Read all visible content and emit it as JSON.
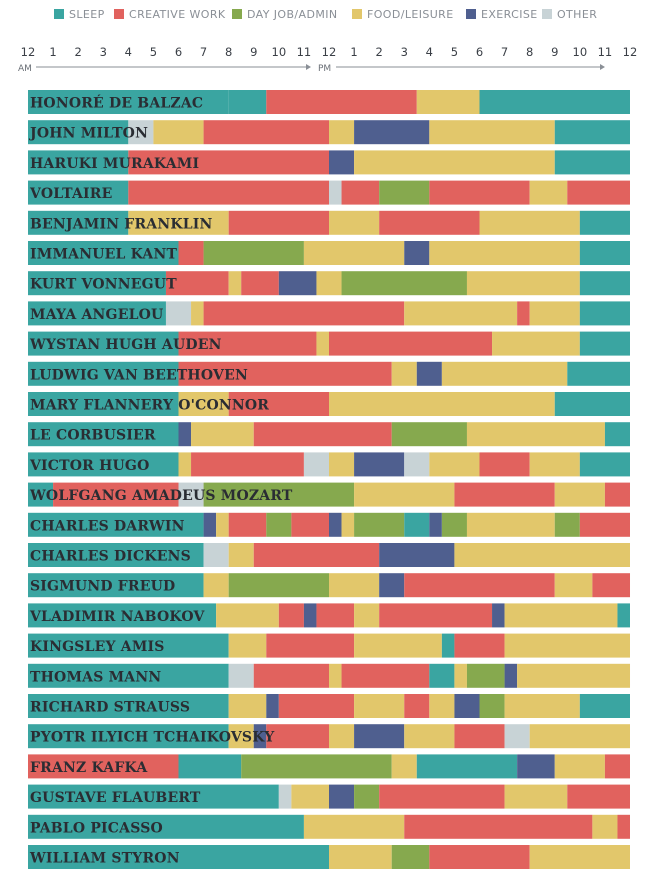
{
  "chart_data": {
    "type": "timeline",
    "x_unit": "hour of day",
    "xlim": [
      0,
      24
    ],
    "legend": [
      {
        "key": "sleep",
        "label": "SLEEP",
        "color": "#3aa5a1"
      },
      {
        "key": "creative",
        "label": "CREATIVE WORK",
        "color": "#e1625e"
      },
      {
        "key": "dayjob",
        "label": "DAY JOB/ADMIN",
        "color": "#86a94e"
      },
      {
        "key": "food",
        "label": "FOOD/LEISURE",
        "color": "#e2c76b"
      },
      {
        "key": "exercise",
        "label": "EXERCISE",
        "color": "#4f5f8f"
      },
      {
        "key": "other",
        "label": "OTHER",
        "color": "#c8d3d6"
      }
    ],
    "ticks": [
      "12",
      "1",
      "2",
      "3",
      "4",
      "5",
      "6",
      "7",
      "8",
      "9",
      "10",
      "11",
      "12",
      "1",
      "2",
      "3",
      "4",
      "5",
      "6",
      "7",
      "8",
      "9",
      "10",
      "11",
      "12"
    ],
    "am_label": "AM",
    "pm_label": "PM",
    "people": [
      {
        "name": "HONORÉ DE BALZAC",
        "segments": [
          [
            "sleep",
            0,
            8
          ],
          [
            "sleep",
            8,
            9.5
          ],
          [
            "creative",
            9.5,
            15.5
          ],
          [
            "food",
            15.5,
            18
          ],
          [
            "sleep",
            18,
            24
          ]
        ]
      },
      {
        "name": "JOHN MILTON",
        "segments": [
          [
            "sleep",
            0,
            4
          ],
          [
            "other",
            4,
            5
          ],
          [
            "food",
            5,
            7
          ],
          [
            "creative",
            7,
            12
          ],
          [
            "food",
            12,
            13
          ],
          [
            "exercise",
            13,
            16
          ],
          [
            "food",
            16,
            21
          ],
          [
            "sleep",
            21,
            24
          ]
        ]
      },
      {
        "name": "HARUKI MURAKAMI",
        "segments": [
          [
            "sleep",
            0,
            4
          ],
          [
            "creative",
            4,
            12
          ],
          [
            "exercise",
            12,
            13
          ],
          [
            "food",
            13,
            21
          ],
          [
            "sleep",
            21,
            24
          ]
        ]
      },
      {
        "name": "VOLTAIRE",
        "segments": [
          [
            "sleep",
            0,
            4
          ],
          [
            "creative",
            4,
            12
          ],
          [
            "other",
            12,
            12.5
          ],
          [
            "creative",
            12.5,
            14
          ],
          [
            "dayjob",
            14,
            16
          ],
          [
            "creative",
            16,
            20
          ],
          [
            "food",
            20,
            21.5
          ],
          [
            "creative",
            21.5,
            24
          ]
        ]
      },
      {
        "name": "BENJAMIN FRANKLIN",
        "segments": [
          [
            "sleep",
            0,
            4
          ],
          [
            "food",
            4,
            8
          ],
          [
            "creative",
            8,
            12
          ],
          [
            "food",
            12,
            14
          ],
          [
            "creative",
            14,
            18
          ],
          [
            "food",
            18,
            22
          ],
          [
            "sleep",
            22,
            24
          ]
        ]
      },
      {
        "name": "IMMANUEL KANT",
        "segments": [
          [
            "sleep",
            0,
            6
          ],
          [
            "creative",
            6,
            7
          ],
          [
            "dayjob",
            7,
            11
          ],
          [
            "food",
            11,
            15
          ],
          [
            "exercise",
            15,
            16
          ],
          [
            "food",
            16,
            22
          ],
          [
            "sleep",
            22,
            24
          ]
        ]
      },
      {
        "name": "KURT VONNEGUT",
        "segments": [
          [
            "sleep",
            0,
            5.5
          ],
          [
            "creative",
            5.5,
            8
          ],
          [
            "food",
            8,
            8.5
          ],
          [
            "creative",
            8.5,
            10
          ],
          [
            "exercise",
            10,
            11.5
          ],
          [
            "food",
            11.5,
            12.5
          ],
          [
            "dayjob",
            12.5,
            17.5
          ],
          [
            "food",
            17.5,
            22
          ],
          [
            "sleep",
            22,
            24
          ]
        ]
      },
      {
        "name": "MAYA ANGELOU",
        "segments": [
          [
            "sleep",
            0,
            5.5
          ],
          [
            "other",
            5.5,
            6.5
          ],
          [
            "food",
            6.5,
            7
          ],
          [
            "creative",
            7,
            15
          ],
          [
            "food",
            15,
            19.5
          ],
          [
            "creative",
            19.5,
            20
          ],
          [
            "food",
            20,
            22
          ],
          [
            "sleep",
            22,
            24
          ]
        ]
      },
      {
        "name": "WYSTAN HUGH AUDEN",
        "segments": [
          [
            "sleep",
            0,
            6
          ],
          [
            "creative",
            6,
            11.5
          ],
          [
            "food",
            11.5,
            12
          ],
          [
            "creative",
            12,
            18.5
          ],
          [
            "food",
            18.5,
            22
          ],
          [
            "sleep",
            22,
            24
          ]
        ]
      },
      {
        "name": "LUDWIG VAN BEETHOVEN",
        "segments": [
          [
            "sleep",
            0,
            6
          ],
          [
            "creative",
            6,
            14.5
          ],
          [
            "food",
            14.5,
            15.5
          ],
          [
            "exercise",
            15.5,
            16.5
          ],
          [
            "food",
            16.5,
            21.5
          ],
          [
            "sleep",
            21.5,
            24
          ]
        ]
      },
      {
        "name": "MARY FLANNERY O'CONNOR",
        "segments": [
          [
            "sleep",
            0,
            6
          ],
          [
            "food",
            6,
            8
          ],
          [
            "creative",
            8,
            12
          ],
          [
            "food",
            12,
            21
          ],
          [
            "sleep",
            21,
            24
          ]
        ]
      },
      {
        "name": "LE CORBUSIER",
        "segments": [
          [
            "sleep",
            0,
            6
          ],
          [
            "exercise",
            6,
            6.5
          ],
          [
            "food",
            6.5,
            9
          ],
          [
            "creative",
            9,
            14.5
          ],
          [
            "dayjob",
            14.5,
            17.5
          ],
          [
            "food",
            17.5,
            23
          ],
          [
            "sleep",
            23,
            24
          ]
        ]
      },
      {
        "name": "VICTOR HUGO",
        "segments": [
          [
            "sleep",
            0,
            6
          ],
          [
            "food",
            6,
            6.5
          ],
          [
            "creative",
            6.5,
            11
          ],
          [
            "other",
            11,
            12
          ],
          [
            "food",
            12,
            13
          ],
          [
            "exercise",
            13,
            15
          ],
          [
            "other",
            15,
            16
          ],
          [
            "food",
            16,
            18
          ],
          [
            "creative",
            18,
            20
          ],
          [
            "food",
            20,
            22
          ],
          [
            "sleep",
            22,
            24
          ]
        ]
      },
      {
        "name": "WOLFGANG AMADEUS MOZART",
        "segments": [
          [
            "sleep",
            0,
            1
          ],
          [
            "creative",
            1,
            6
          ],
          [
            "other",
            6,
            7
          ],
          [
            "dayjob",
            7,
            13
          ],
          [
            "food",
            13,
            17
          ],
          [
            "creative",
            17,
            21
          ],
          [
            "food",
            21,
            23
          ],
          [
            "creative",
            23,
            24
          ]
        ]
      },
      {
        "name": "CHARLES DARWIN",
        "segments": [
          [
            "sleep",
            0,
            7
          ],
          [
            "exercise",
            7,
            7.5
          ],
          [
            "food",
            7.5,
            8
          ],
          [
            "creative",
            8,
            9.5
          ],
          [
            "dayjob",
            9.5,
            10.5
          ],
          [
            "creative",
            10.5,
            12
          ],
          [
            "exercise",
            12,
            12.5
          ],
          [
            "food",
            12.5,
            13
          ],
          [
            "dayjob",
            13,
            15
          ],
          [
            "sleep",
            15,
            16
          ],
          [
            "exercise",
            16,
            16.5
          ],
          [
            "dayjob",
            16.5,
            17.5
          ],
          [
            "food",
            17.5,
            21
          ],
          [
            "dayjob",
            21,
            22
          ],
          [
            "creative",
            22,
            24
          ]
        ]
      },
      {
        "name": "CHARLES DICKENS",
        "segments": [
          [
            "sleep",
            0,
            7
          ],
          [
            "other",
            7,
            8
          ],
          [
            "food",
            8,
            9
          ],
          [
            "creative",
            9,
            14
          ],
          [
            "exercise",
            14,
            17
          ],
          [
            "food",
            17,
            24
          ]
        ]
      },
      {
        "name": "SIGMUND FREUD",
        "segments": [
          [
            "sleep",
            0,
            7
          ],
          [
            "food",
            7,
            8
          ],
          [
            "dayjob",
            8,
            12
          ],
          [
            "food",
            12,
            14
          ],
          [
            "exercise",
            14,
            15
          ],
          [
            "creative",
            15,
            21
          ],
          [
            "food",
            21,
            22.5
          ],
          [
            "creative",
            22.5,
            24
          ]
        ]
      },
      {
        "name": "VLADIMIR NABOKOV",
        "segments": [
          [
            "sleep",
            0,
            7.5
          ],
          [
            "food",
            7.5,
            10
          ],
          [
            "creative",
            10,
            11
          ],
          [
            "exercise",
            11,
            11.5
          ],
          [
            "creative",
            11.5,
            13
          ],
          [
            "food",
            13,
            14
          ],
          [
            "creative",
            14,
            18.5
          ],
          [
            "exercise",
            18.5,
            19
          ],
          [
            "food",
            19,
            23.5
          ],
          [
            "sleep",
            23.5,
            24
          ]
        ]
      },
      {
        "name": "KINGSLEY AMIS",
        "segments": [
          [
            "sleep",
            0,
            8
          ],
          [
            "food",
            8,
            9.5
          ],
          [
            "creative",
            9.5,
            13
          ],
          [
            "food",
            13,
            16.5
          ],
          [
            "sleep",
            16.5,
            17
          ],
          [
            "creative",
            17,
            19
          ],
          [
            "food",
            19,
            24
          ]
        ]
      },
      {
        "name": "THOMAS MANN",
        "segments": [
          [
            "sleep",
            0,
            8
          ],
          [
            "other",
            8,
            9
          ],
          [
            "creative",
            9,
            12
          ],
          [
            "food",
            12,
            12.5
          ],
          [
            "creative",
            12.5,
            16
          ],
          [
            "sleep",
            16,
            17
          ],
          [
            "food",
            17,
            17.5
          ],
          [
            "dayjob",
            17.5,
            19
          ],
          [
            "exercise",
            19,
            19.5
          ],
          [
            "food",
            19.5,
            24
          ]
        ]
      },
      {
        "name": "RICHARD STRAUSS",
        "segments": [
          [
            "sleep",
            0,
            8
          ],
          [
            "food",
            8,
            9.5
          ],
          [
            "exercise",
            9.5,
            10
          ],
          [
            "creative",
            10,
            13
          ],
          [
            "food",
            13,
            15
          ],
          [
            "creative",
            15,
            16
          ],
          [
            "food",
            16,
            17
          ],
          [
            "exercise",
            17,
            18
          ],
          [
            "dayjob",
            18,
            19
          ],
          [
            "food",
            19,
            22
          ],
          [
            "sleep",
            22,
            24
          ]
        ]
      },
      {
        "name": "PYOTR ILYICH TCHAIKOVSKY",
        "segments": [
          [
            "sleep",
            0,
            8
          ],
          [
            "food",
            8,
            9
          ],
          [
            "exercise",
            9,
            9.5
          ],
          [
            "creative",
            9.5,
            12
          ],
          [
            "food",
            12,
            13
          ],
          [
            "exercise",
            13,
            15
          ],
          [
            "food",
            15,
            17
          ],
          [
            "creative",
            17,
            19
          ],
          [
            "other",
            19,
            20
          ],
          [
            "food",
            20,
            24
          ]
        ]
      },
      {
        "name": "FRANZ KAFKA",
        "segments": [
          [
            "creative",
            0,
            6
          ],
          [
            "sleep",
            6,
            8.5
          ],
          [
            "dayjob",
            8.5,
            14.5
          ],
          [
            "food",
            14.5,
            15.5
          ],
          [
            "sleep",
            15.5,
            19.5
          ],
          [
            "exercise",
            19.5,
            21
          ],
          [
            "food",
            21,
            23
          ],
          [
            "creative",
            23,
            24
          ]
        ]
      },
      {
        "name": "GUSTAVE FLAUBERT",
        "segments": [
          [
            "sleep",
            0,
            10
          ],
          [
            "other",
            10,
            10.5
          ],
          [
            "food",
            10.5,
            12
          ],
          [
            "exercise",
            12,
            13
          ],
          [
            "dayjob",
            13,
            14
          ],
          [
            "creative",
            14,
            19
          ],
          [
            "food",
            19,
            21.5
          ],
          [
            "creative",
            21.5,
            24
          ]
        ]
      },
      {
        "name": "PABLO PICASSO",
        "segments": [
          [
            "sleep",
            0,
            11
          ],
          [
            "food",
            11,
            15
          ],
          [
            "creative",
            15,
            22.5
          ],
          [
            "food",
            22.5,
            23.5
          ],
          [
            "creative",
            23.5,
            24
          ]
        ]
      },
      {
        "name": "WILLIAM STYRON",
        "segments": [
          [
            "sleep",
            0,
            12
          ],
          [
            "food",
            12,
            14.5
          ],
          [
            "dayjob",
            14.5,
            16
          ],
          [
            "creative",
            16,
            20
          ],
          [
            "food",
            20,
            24
          ]
        ]
      }
    ]
  }
}
